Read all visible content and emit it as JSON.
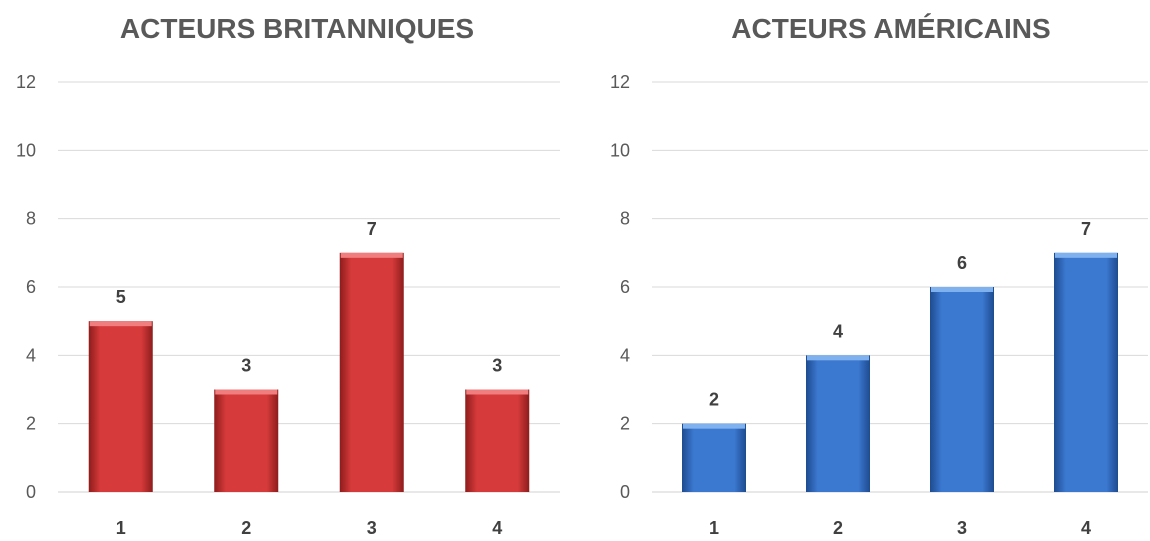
{
  "chart_data": [
    {
      "type": "bar",
      "title": "ACTEURS BRITANNIQUES",
      "xlabel": "",
      "ylabel": "",
      "categories": [
        "1",
        "2",
        "3",
        "4"
      ],
      "values": [
        5,
        3,
        7,
        3
      ],
      "ylim": [
        0,
        12
      ],
      "yticks": [
        0,
        2,
        4,
        6,
        8,
        10,
        12
      ],
      "grid": true,
      "legend": "none",
      "data_labels": true,
      "color": "#d63a3a",
      "color_dark": "#8e1c1c",
      "color_light": "#f07e7e"
    },
    {
      "type": "bar",
      "title": "ACTEURS AMÉRICAINS",
      "xlabel": "",
      "ylabel": "",
      "categories": [
        "1",
        "2",
        "3",
        "4"
      ],
      "values": [
        2,
        4,
        6,
        7
      ],
      "ylim": [
        0,
        12
      ],
      "yticks": [
        0,
        2,
        4,
        6,
        8,
        10,
        12
      ],
      "grid": true,
      "legend": "none",
      "data_labels": true,
      "color": "#3b78cf",
      "color_dark": "#1d4b8f",
      "color_light": "#7fb1ee"
    }
  ]
}
